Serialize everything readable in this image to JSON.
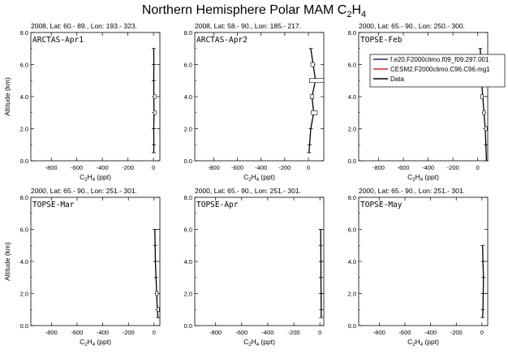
{
  "title": {
    "main": "Northern Hemisphere Polar MAM C",
    "sub": "2",
    "rest": "H",
    "sub2": "4"
  },
  "legend": [
    {
      "label": "f.e20.F2000climo.f09_f09.297.001",
      "color": "#1f1fb4"
    },
    {
      "label": "CESM2.F2000climo.C96.C96.mg1",
      "color": "#e02020"
    },
    {
      "label": "Data",
      "color": "#000000"
    }
  ],
  "chart_data": [
    {
      "type": "line",
      "subtitle": "2008, Lat:  60.- 89., Lon: 193.- 323.",
      "campaign": "ARCTAS-Apr1",
      "xlabel": "C2H4 (ppt)",
      "ylabel": "Altitude (km)",
      "xlim": [
        -960,
        50
      ],
      "ylim": [
        0,
        8
      ],
      "xticks": [
        -800,
        -600,
        -400,
        -200,
        0
      ],
      "yticks": [
        0,
        2,
        4,
        6,
        8
      ],
      "series": [
        {
          "name": "Data",
          "x": [
            2,
            3,
            2,
            4,
            3,
            2,
            3,
            2
          ],
          "y": [
            0.5,
            1.0,
            2.0,
            3.0,
            4.0,
            5.0,
            6.0,
            7.0
          ]
        }
      ],
      "boxes": [
        {
          "y": 3.0,
          "lo": 0,
          "hi": 8
        },
        {
          "y": 4.0,
          "lo": 0,
          "hi": 7
        }
      ]
    },
    {
      "type": "line",
      "subtitle": "2008, Lat:  58.- 90., Lon: 185.- 217.",
      "campaign": "ARCTAS-Apr2",
      "xlabel": "C2H4 (ppt)",
      "ylabel": "Altitude (km)",
      "xlim": [
        -960,
        130
      ],
      "ylim": [
        0,
        8
      ],
      "xticks": [
        -800,
        -600,
        -400,
        -200,
        0
      ],
      "yticks": [
        0,
        2,
        4,
        6,
        8
      ],
      "series": [
        {
          "name": "Data",
          "x": [
            5,
            10,
            20,
            45,
            30,
            60,
            40,
            20
          ],
          "y": [
            0.5,
            1.0,
            2.0,
            3.0,
            4.0,
            5.0,
            6.0,
            7.0
          ]
        }
      ],
      "boxes": [
        {
          "y": 3.0,
          "lo": 25,
          "hi": 75
        },
        {
          "y": 4.0,
          "lo": 15,
          "hi": 45
        },
        {
          "y": 5.0,
          "lo": 10,
          "hi": 130
        },
        {
          "y": 6.0,
          "lo": 20,
          "hi": 50
        }
      ]
    },
    {
      "type": "line",
      "subtitle": "2000, Lat:  65.- 90., Lon: 250.- 300.",
      "campaign": "TOPSE-Feb",
      "xlabel": "C2H4 (ppt)",
      "ylabel": "Altitude (km)",
      "xlim": [
        -960,
        80
      ],
      "ylim": [
        0,
        8
      ],
      "xticks": [
        -800,
        -600,
        -400,
        -200,
        0
      ],
      "yticks": [
        0,
        2,
        4,
        6,
        8
      ],
      "series": [
        {
          "name": "Data",
          "x": [
            70,
            65,
            60,
            50,
            40,
            30,
            25,
            20
          ],
          "y": [
            0.0,
            1.0,
            2.0,
            3.0,
            4.0,
            5.0,
            6.0,
            7.0
          ]
        }
      ],
      "boxes": [
        {
          "y": 2.0,
          "lo": 55,
          "hi": 70
        },
        {
          "y": 3.0,
          "lo": 40,
          "hi": 60
        },
        {
          "y": 4.0,
          "lo": 25,
          "hi": 45
        },
        {
          "y": 5.0,
          "lo": 20,
          "hi": 35
        }
      ]
    },
    {
      "type": "line",
      "subtitle": "2000, Lat:  65.- 90., Lon: 251.- 301.",
      "campaign": "TOPSE-Mar",
      "xlabel": "C2H4 (ppt)",
      "ylabel": "Altitude (km)",
      "xlim": [
        -960,
        45
      ],
      "ylim": [
        0,
        8
      ],
      "xticks": [
        -800,
        -600,
        -400,
        -200,
        0
      ],
      "yticks": [
        0,
        2,
        4,
        6,
        8
      ],
      "series": [
        {
          "name": "Data",
          "x": [
            30,
            25,
            20,
            15,
            10,
            8,
            6
          ],
          "y": [
            0.5,
            1.0,
            2.0,
            3.0,
            4.0,
            5.0,
            6.0
          ]
        }
      ],
      "boxes": [
        {
          "y": 1.0,
          "lo": 22,
          "hi": 35
        },
        {
          "y": 2.0,
          "lo": 12,
          "hi": 25
        }
      ]
    },
    {
      "type": "line",
      "subtitle": "2000, Lat:  65.- 90., Lon: 251.- 301.",
      "campaign": "TOPSE-Apr",
      "xlabel": "C2H4 (ppt)",
      "ylabel": "Altitude (km)",
      "xlim": [
        -960,
        30
      ],
      "ylim": [
        0,
        8
      ],
      "xticks": [
        -800,
        -600,
        -400,
        -200,
        0
      ],
      "yticks": [
        0,
        2,
        4,
        6,
        8
      ],
      "series": [
        {
          "name": "Data",
          "x": [
            10,
            10,
            9,
            8,
            8,
            7,
            6
          ],
          "y": [
            0.5,
            1.0,
            2.0,
            3.0,
            4.0,
            5.0,
            6.0
          ]
        }
      ],
      "boxes": []
    },
    {
      "type": "line",
      "subtitle": "2000, Lat:  65.- 90., Lon: 251.- 301.",
      "campaign": "TOPSE-May",
      "xlabel": "C2H4 (ppt)",
      "ylabel": "Altitude (km)",
      "xlim": [
        -960,
        45
      ],
      "ylim": [
        0,
        8
      ],
      "xticks": [
        -800,
        -600,
        -400,
        -200,
        0
      ],
      "yticks": [
        0,
        2,
        4,
        6,
        8
      ],
      "series": [
        {
          "name": "Data",
          "x": [
            5,
            8,
            10,
            12,
            8,
            5
          ],
          "y": [
            0.5,
            1.0,
            2.0,
            3.0,
            4.0,
            5.0
          ]
        }
      ],
      "boxes": []
    }
  ]
}
